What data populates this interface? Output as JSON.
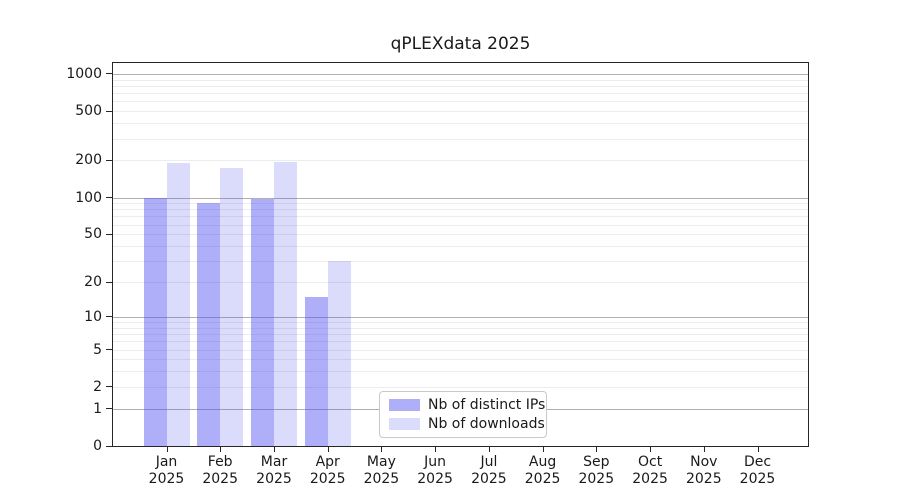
{
  "title": "qPLEXdata 2025",
  "chart_data": {
    "type": "bar",
    "title": "qPLEXdata 2025",
    "categories": [
      "Jan 2025",
      "Feb 2025",
      "Mar 2025",
      "Apr 2025",
      "May 2025",
      "Jun 2025",
      "Jul 2025",
      "Aug 2025",
      "Sep 2025",
      "Oct 2025",
      "Nov 2025",
      "Dec 2025"
    ],
    "series": [
      {
        "name": "Nb of distinct IPs",
        "color": "rgba(75,75,242,0.45)",
        "values": [
          100,
          90,
          97,
          15,
          0,
          0,
          0,
          0,
          0,
          0,
          0,
          0
        ]
      },
      {
        "name": "Nb of downloads",
        "color": "rgba(75,75,242,0.20)",
        "values": [
          190,
          175,
          195,
          30,
          0,
          0,
          0,
          0,
          0,
          0,
          0,
          0
        ]
      }
    ],
    "xlabel": "",
    "ylabel": "",
    "yscale": "log1p",
    "ylim": [
      0,
      1200
    ],
    "yticks": [
      0,
      1,
      2,
      5,
      10,
      20,
      50,
      100,
      200,
      500,
      1000
    ],
    "major_gridline_values": [
      1,
      10,
      100,
      1000
    ],
    "grid": "horizontal major + minor (log decades)",
    "legend_position": "inside, lower center-left"
  },
  "colors": {
    "background": "#ffffff",
    "axis": "#262626",
    "text": "#1a1a1a",
    "major_grid": "#b0b0b0",
    "minor_grid": "#ececec",
    "legend_border": "#c9c9c9"
  }
}
